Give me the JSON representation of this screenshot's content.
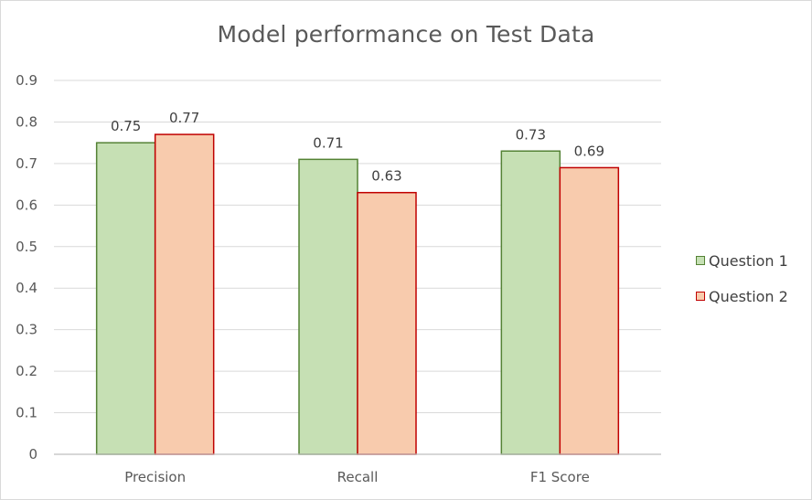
{
  "chart_data": {
    "type": "bar",
    "title": "Model performance  on Test Data",
    "categories": [
      "Precision",
      "Recall",
      "F1 Score"
    ],
    "series": [
      {
        "name": "Question 1",
        "values": [
          0.75,
          0.71,
          0.73
        ],
        "labels": [
          "0.75",
          "0.71",
          "0.73"
        ],
        "fill": "#c6e0b4",
        "stroke": "#548235"
      },
      {
        "name": "Question 2",
        "values": [
          0.77,
          0.63,
          0.69
        ],
        "labels": [
          "0.77",
          "0.63",
          "0.69"
        ],
        "fill": "#f8cbad",
        "stroke": "#c00000"
      }
    ],
    "ylim": [
      0,
      0.9
    ],
    "yticks": [
      "0",
      "0.1",
      "0.2",
      "0.3",
      "0.4",
      "0.5",
      "0.6",
      "0.7",
      "0.8",
      "0.9"
    ],
    "grid": true,
    "legend_position": "right",
    "colors": {
      "gridline": "#d9d9d9",
      "axis": "#bfbfbf",
      "tick_text": "#595959",
      "data_label_text": "#404040"
    }
  }
}
